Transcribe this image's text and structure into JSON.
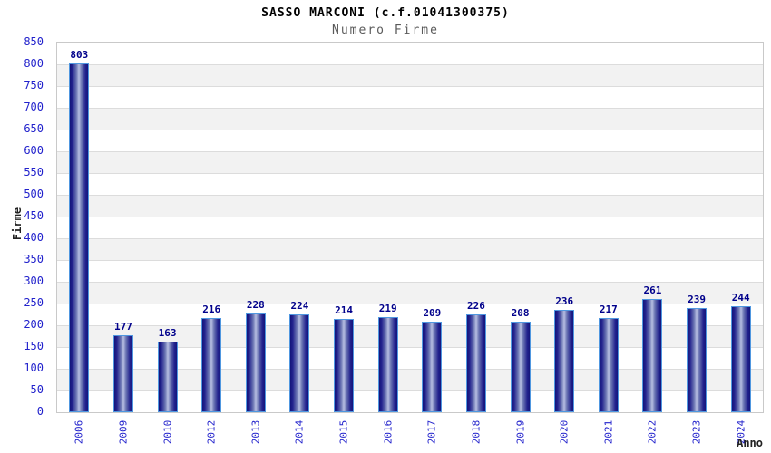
{
  "chart_data": {
    "type": "bar",
    "title": "SASSO MARCONI (c.f.01041300375)",
    "subtitle": "Numero Firme",
    "xlabel": "Anno",
    "ylabel": "Firme",
    "categories": [
      "2006",
      "2009",
      "2010",
      "2012",
      "2013",
      "2014",
      "2015",
      "2016",
      "2017",
      "2018",
      "2019",
      "2020",
      "2021",
      "2022",
      "2023",
      "2024"
    ],
    "values": [
      803,
      177,
      163,
      216,
      228,
      224,
      214,
      219,
      209,
      226,
      208,
      236,
      217,
      261,
      239,
      244
    ],
    "ylim": [
      0,
      850
    ],
    "ytick_step": 50,
    "grid": true,
    "legend_position": "none",
    "band_colors": [
      "#ffffff",
      "#f2f2f2"
    ],
    "gridline_color": "#dcdcdc",
    "colors": {
      "tick_label": "#2222cc",
      "value_label": "#00008b",
      "bar_edge": "#14147a",
      "bar_center": "#b7bfe2",
      "bar_border": "#4f97e0",
      "title": "#000000",
      "subtitle": "#5a5a5a",
      "axis_title": "#222222",
      "plot_border": "#c9c9c9"
    }
  }
}
